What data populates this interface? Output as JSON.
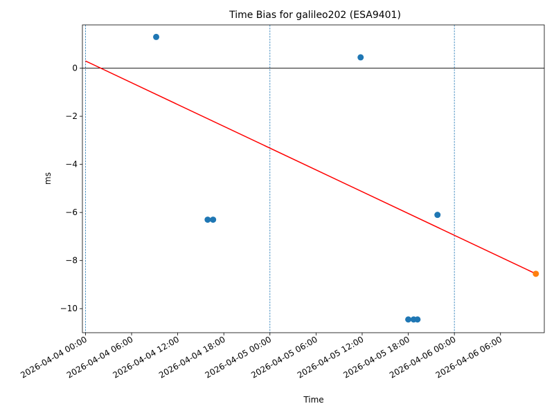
{
  "chart_data": {
    "type": "scatter",
    "title": "Time Bias for galileo202 (ESA9401)",
    "xlabel": "Time",
    "ylabel": "ms",
    "xlim": [
      "2026-04-03 23:36",
      "2026-04-06 11:42"
    ],
    "ylim": [
      -11.0,
      1.8
    ],
    "x_ticks": [
      "2026-04-04 00:00",
      "2026-04-04 06:00",
      "2026-04-04 12:00",
      "2026-04-04 18:00",
      "2026-04-05 00:00",
      "2026-04-05 06:00",
      "2026-04-05 12:00",
      "2026-04-05 18:00",
      "2026-04-06 00:00",
      "2026-04-06 06:00"
    ],
    "y_ticks": [
      0,
      -2,
      -4,
      -6,
      -8,
      -10
    ],
    "y_tick_labels": [
      "0",
      "−2",
      "−4",
      "−6",
      "−8",
      "−10"
    ],
    "vertical_lines": [
      "2026-04-04 00:00",
      "2026-04-05 00:00",
      "2026-04-06 00:00"
    ],
    "horizontal_line": 0,
    "grid": false,
    "series": [
      {
        "color": "#1f77b4",
        "points": [
          {
            "x": "2026-04-04 09:12",
            "y": 1.3
          },
          {
            "x": "2026-04-04 15:54",
            "y": -6.3
          },
          {
            "x": "2026-04-04 16:36",
            "y": -6.3
          },
          {
            "x": "2026-04-05 11:48",
            "y": 0.45
          },
          {
            "x": "2026-04-05 18:00",
            "y": -10.45
          },
          {
            "x": "2026-04-05 18:42",
            "y": -10.45
          },
          {
            "x": "2026-04-05 19:12",
            "y": -10.45
          },
          {
            "x": "2026-04-05 21:48",
            "y": -6.1
          }
        ]
      },
      {
        "color": "#ff7f0e",
        "points": [
          {
            "x": "2026-04-06 10:36",
            "y": -8.55
          }
        ]
      }
    ],
    "fit_line": {
      "color": "#ff0000",
      "start": {
        "x": "2026-04-04 00:00",
        "y": 0.3
      },
      "end": {
        "x": "2026-04-06 10:36",
        "y": -8.55
      }
    }
  }
}
